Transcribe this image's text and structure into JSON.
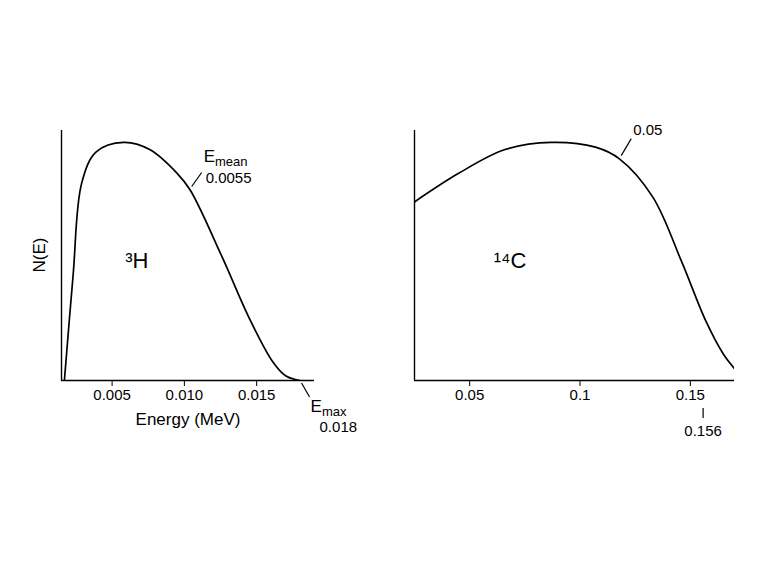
{
  "chart_data": [
    {
      "type": "line",
      "title": "³H",
      "x_label": "Energy (MeV)",
      "y_label": "N(E)",
      "x": [
        0.0017,
        0.0023,
        0.0029,
        0.0039,
        0.0058,
        0.0076,
        0.0095,
        0.0104,
        0.0126,
        0.0145,
        0.0161,
        0.017,
        0.018
      ],
      "values": [
        0,
        44,
        83,
        96,
        100,
        97,
        87,
        80,
        52,
        26,
        8,
        2,
        0
      ],
      "xlim": [
        0.0015,
        0.019
      ],
      "ylim": [
        0,
        105
      ],
      "xticks": [
        0.005,
        {
          "value": 0.01,
          "label": "0.010"
        },
        0.015
      ],
      "tick_labels": "x",
      "color": "#000000",
      "annotations": [
        {
          "text": "E",
          "subscript": "mean",
          "value": 0.0055,
          "x": 0.0104,
          "y": 80
        },
        {
          "text": "E",
          "subscript": "max",
          "value": 0.018,
          "x": 0.018,
          "y": 0
        }
      ]
    },
    {
      "type": "line",
      "title": "¹⁴C",
      "x": [
        0.025,
        0.045,
        0.066,
        0.087,
        0.107,
        0.118,
        0.133,
        0.146,
        0.157,
        0.165,
        0.17
      ],
      "values": [
        75,
        87,
        97,
        100,
        98,
        93,
        77,
        50,
        25,
        11,
        5
      ],
      "xlim": [
        0.025,
        0.17
      ],
      "ylim": [
        0,
        105
      ],
      "xticks": [
        0.05,
        0.1,
        0.15
      ],
      "tick_labels": "x",
      "color": "#000000",
      "annotations": [
        {
          "value": 0.05,
          "x": 0.118,
          "y": 93
        },
        {
          "value": 0.156,
          "x": 0.156,
          "y": 0
        }
      ]
    }
  ]
}
